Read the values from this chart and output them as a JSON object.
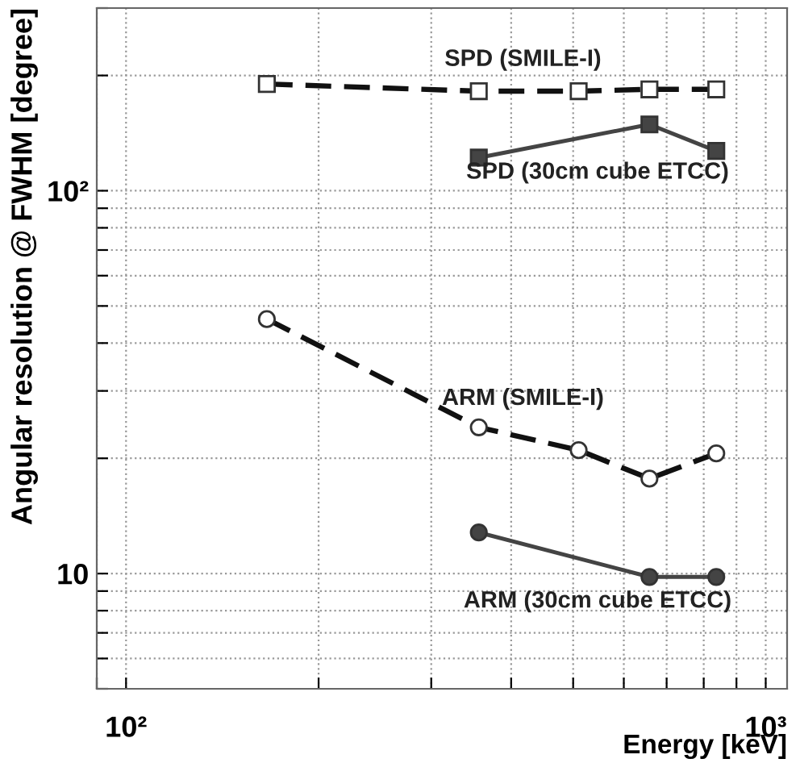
{
  "chart_data": {
    "type": "line",
    "xlabel": "Energy [keV]",
    "ylabel": "Angular resolution @ FWHM [degree]",
    "log": "xy",
    "grid": true,
    "legend": false,
    "xlim": [
      90,
      1080
    ],
    "ylim": [
      5,
      300
    ],
    "xticks": [
      {
        "value": 90,
        "label": null
      },
      {
        "value": 100,
        "label": "10²"
      },
      {
        "value": 200,
        "label": null
      },
      {
        "value": 300,
        "label": null
      },
      {
        "value": 400,
        "label": null
      },
      {
        "value": 500,
        "label": null
      },
      {
        "value": 600,
        "label": null
      },
      {
        "value": 700,
        "label": null
      },
      {
        "value": 800,
        "label": null
      },
      {
        "value": 900,
        "label": null
      },
      {
        "value": 1000,
        "label": "10³"
      }
    ],
    "yticks": [
      {
        "value": 5,
        "label": null
      },
      {
        "value": 6,
        "label": null
      },
      {
        "value": 7,
        "label": null
      },
      {
        "value": 8,
        "label": null
      },
      {
        "value": 9,
        "label": null
      },
      10,
      {
        "value": 20,
        "label": null
      },
      {
        "value": 30,
        "label": null
      },
      {
        "value": 40,
        "label": null
      },
      {
        "value": 50,
        "label": null
      },
      {
        "value": 60,
        "label": null
      },
      {
        "value": 70,
        "label": null
      },
      {
        "value": 80,
        "label": null
      },
      {
        "value": 90,
        "label": null
      },
      {
        "value": 100,
        "label": "10²"
      },
      {
        "value": 200,
        "label": null
      },
      {
        "value": 300,
        "label": null
      }
    ],
    "series": [
      {
        "name": "SPD (SMILE-I)",
        "color": "#111111",
        "line_style": "dashed",
        "marker": "square",
        "x": [
          166,
          356,
          510,
          658,
          837
        ],
        "values": [
          190,
          182,
          182,
          184,
          184
        ]
      },
      {
        "name": "SPD (30cm cube ETCC)",
        "color": "#444444",
        "line_style": "solid",
        "marker": "square",
        "x": [
          356,
          658,
          837
        ],
        "values": [
          122,
          149,
          127
        ]
      },
      {
        "name": "ARM (SMILE-I)",
        "color": "#111111",
        "line_style": "dashed",
        "marker": "circle",
        "x": [
          166,
          356,
          510,
          658,
          837
        ],
        "values": [
          46.2,
          24.1,
          21.0,
          17.7,
          20.6
        ]
      },
      {
        "name": "ARM (30cm cube ETCC)",
        "color": "#444444",
        "line_style": "solid",
        "marker": "circle",
        "x": [
          356,
          658,
          837
        ],
        "values": [
          12.8,
          9.8,
          9.8
        ]
      }
    ]
  }
}
